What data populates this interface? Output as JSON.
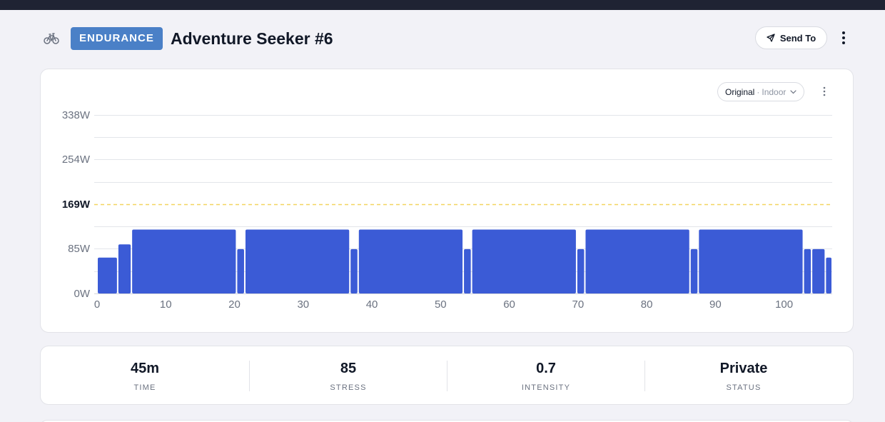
{
  "header": {
    "sport_icon": "bike-icon",
    "badge": "ENDURANCE",
    "title": "Adventure Seeker #6",
    "send_label": "Send To",
    "more_icon": "vertical-ellipsis-icon"
  },
  "view_select": {
    "value": "Original",
    "separator": "·",
    "sub": "Indoor"
  },
  "colors": {
    "bar": "#3b5bd6",
    "threshold": "#f2d560",
    "badge": "#4a80c7"
  },
  "chart_data": {
    "type": "bar",
    "x_ticks": [
      0,
      10,
      20,
      30,
      40,
      50,
      60,
      70,
      80,
      90,
      100
    ],
    "y_ticks": [
      "0W",
      "85W",
      "169W",
      "254W",
      "338W"
    ],
    "y_tick_values": [
      0,
      85,
      169,
      254,
      338
    ],
    "xlim": [
      0,
      107
    ],
    "ylim": [
      0,
      338
    ],
    "threshold": {
      "value": 169,
      "label": "169W"
    },
    "segments": [
      {
        "start": 0,
        "end": 3,
        "power": 68
      },
      {
        "start": 3,
        "end": 5,
        "power": 93
      },
      {
        "start": 5,
        "end": 20.3,
        "power": 121
      },
      {
        "start": 20.3,
        "end": 21.5,
        "power": 84
      },
      {
        "start": 21.5,
        "end": 36.8,
        "power": 121
      },
      {
        "start": 36.8,
        "end": 38,
        "power": 84
      },
      {
        "start": 38,
        "end": 53.3,
        "power": 121
      },
      {
        "start": 53.3,
        "end": 54.5,
        "power": 84
      },
      {
        "start": 54.5,
        "end": 69.8,
        "power": 121
      },
      {
        "start": 69.8,
        "end": 71,
        "power": 84
      },
      {
        "start": 71,
        "end": 86.3,
        "power": 121
      },
      {
        "start": 86.3,
        "end": 87.5,
        "power": 84
      },
      {
        "start": 87.5,
        "end": 102.8,
        "power": 121
      },
      {
        "start": 102.8,
        "end": 104,
        "power": 84
      },
      {
        "start": 104,
        "end": 106,
        "power": 84
      },
      {
        "start": 106,
        "end": 107,
        "power": 68
      }
    ]
  },
  "stats": [
    {
      "value": "45m",
      "label": "TIME"
    },
    {
      "value": "85",
      "label": "STRESS"
    },
    {
      "value": "0.7",
      "label": "INTENSITY"
    },
    {
      "value": "Private",
      "label": "STATUS"
    }
  ]
}
